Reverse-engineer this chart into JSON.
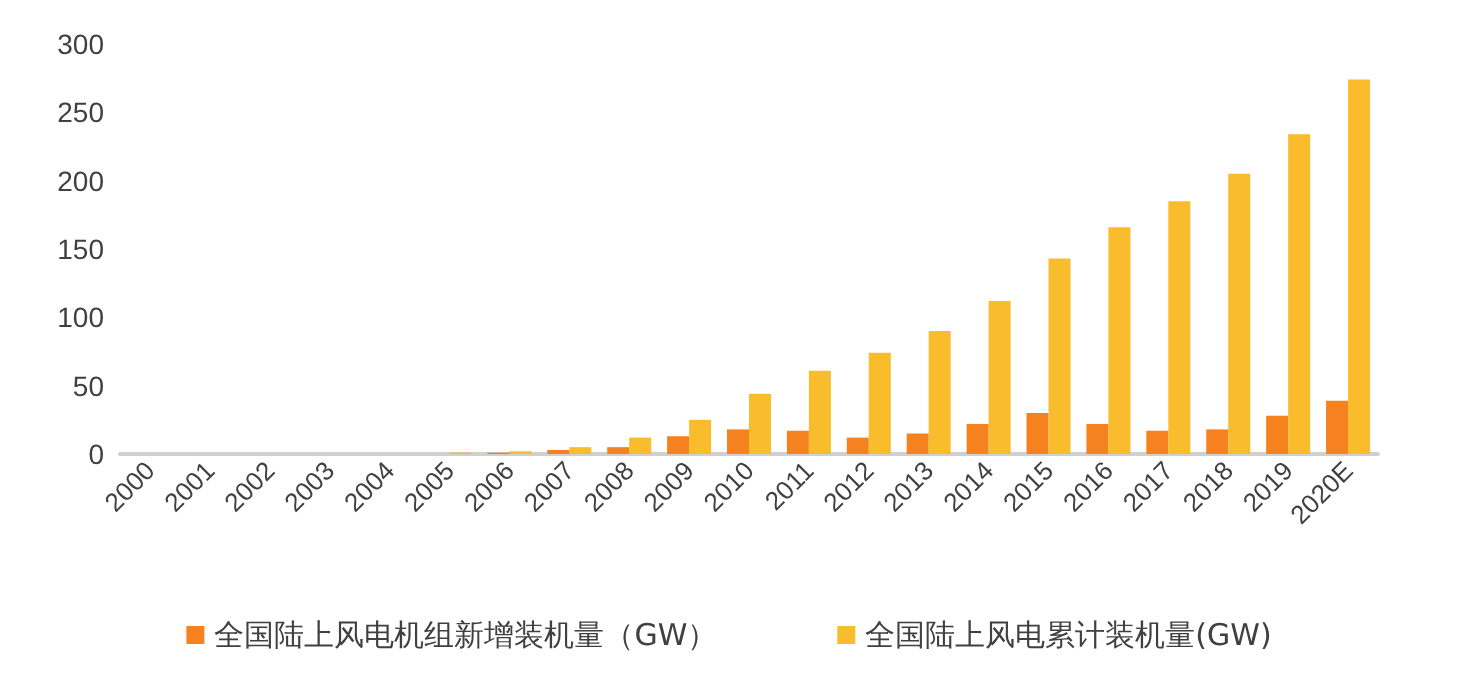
{
  "chart_data": {
    "type": "bar",
    "categories": [
      "2000",
      "2001",
      "2002",
      "2003",
      "2004",
      "2005",
      "2006",
      "2007",
      "2008",
      "2009",
      "2010",
      "2011",
      "2012",
      "2013",
      "2014",
      "2015",
      "2016",
      "2017",
      "2018",
      "2019",
      "2020E"
    ],
    "series": [
      {
        "name": "全国陆上风电机组新增装机量（GW）",
        "color": "#f5821f",
        "values": [
          0,
          0,
          0,
          0,
          0,
          0,
          1,
          3,
          5,
          13,
          18,
          17,
          12,
          15,
          22,
          30,
          22,
          17,
          18,
          28,
          39
        ]
      },
      {
        "name": "全国陆上风电累计装机量(GW)",
        "color": "#f9bc2c",
        "values": [
          0,
          0,
          0,
          0,
          0,
          1,
          2,
          5,
          12,
          25,
          44,
          61,
          74,
          90,
          112,
          143,
          166,
          185,
          205,
          234,
          274
        ]
      }
    ],
    "ylim": [
      0,
      300
    ],
    "yticks": [
      0,
      50,
      100,
      150,
      200,
      250,
      300
    ],
    "grid": false,
    "legend": "bottom"
  }
}
